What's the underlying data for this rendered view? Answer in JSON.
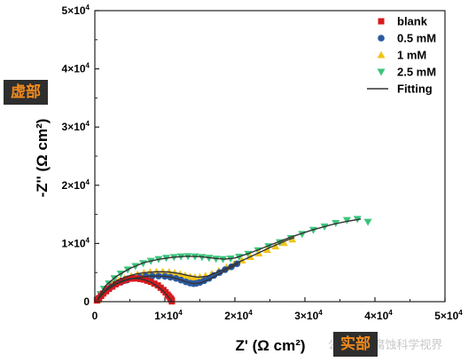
{
  "annotations": {
    "imaginary_tag": "虚部",
    "real_tag": "实部",
    "watermark": "公众号 · 腐蚀科学视界"
  },
  "chart_data": {
    "type": "scatter",
    "xlabel": "Z' (Ω cm²)",
    "ylabel": "-Z'' (Ω cm²)",
    "xlim": [
      0,
      50000
    ],
    "ylim": [
      0,
      50000
    ],
    "x_ticks": [
      0,
      10000,
      20000,
      30000,
      40000,
      50000
    ],
    "y_ticks": [
      0,
      10000,
      20000,
      30000,
      40000,
      50000
    ],
    "tick_labels": [
      "0",
      "1×10",
      "2×10",
      "3×10",
      "4×10",
      "5×10"
    ],
    "tick_exponent": "4",
    "grid": false,
    "legend_position": "top-right",
    "series": [
      {
        "name": "blank",
        "marker": "square",
        "color": "#d7191c",
        "x": [
          300,
          600,
          900,
          1200,
          1600,
          2000,
          2500,
          3000,
          3500,
          4000,
          4500,
          5000,
          5500,
          6000,
          6500,
          7000,
          7500,
          8000,
          8500,
          9000,
          9400,
          9800,
          10100,
          10400,
          10600,
          10800,
          10900,
          11000,
          11000
        ],
        "y": [
          200,
          600,
          1000,
          1400,
          1800,
          2200,
          2600,
          3000,
          3300,
          3600,
          3800,
          3950,
          4000,
          4000,
          3900,
          3800,
          3600,
          3400,
          3100,
          2800,
          2400,
          2000,
          1600,
          1200,
          900,
          600,
          400,
          200,
          50
        ]
      },
      {
        "name": "0.5 mM",
        "marker": "circle",
        "color": "#2c5aa0",
        "x": [
          400,
          800,
          1200,
          1700,
          2300,
          3000,
          3800,
          4600,
          5500,
          6400,
          7300,
          8200,
          9100,
          10000,
          10800,
          11600,
          12300,
          13000,
          13600,
          14100,
          14500,
          15000,
          15600,
          16300,
          17000,
          17800,
          18600,
          19500,
          20300
        ],
        "y": [
          300,
          900,
          1400,
          2000,
          2500,
          3000,
          3400,
          3700,
          4000,
          4200,
          4350,
          4400,
          4400,
          4350,
          4200,
          4000,
          3700,
          3400,
          3200,
          3100,
          3150,
          3300,
          3600,
          4000,
          4500,
          5000,
          5500,
          6000,
          6500
        ]
      },
      {
        "name": "1 mM",
        "marker": "triangle-up",
        "color": "#f0c419",
        "x": [
          400,
          800,
          1300,
          1900,
          2600,
          3400,
          4300,
          5200,
          6100,
          7000,
          7900,
          8800,
          9700,
          10600,
          11400,
          12200,
          12900,
          13600,
          14300,
          15000,
          15800,
          16700,
          17700,
          18800,
          19900,
          21000,
          22200,
          23400,
          24600,
          25800,
          27000,
          28200
        ],
        "y": [
          300,
          1000,
          1700,
          2400,
          3000,
          3600,
          4000,
          4400,
          4700,
          4950,
          5100,
          5150,
          5150,
          5100,
          4950,
          4750,
          4500,
          4300,
          4200,
          4250,
          4450,
          4800,
          5300,
          5900,
          6500,
          7100,
          7700,
          8300,
          8900,
          9500,
          10100,
          10700
        ]
      },
      {
        "name": "2.5 mM",
        "marker": "triangle-down",
        "color": "#3cc47c",
        "x": [
          400,
          800,
          1300,
          2000,
          2800,
          3700,
          4700,
          5800,
          6900,
          8000,
          9100,
          10200,
          11300,
          12300,
          13300,
          14300,
          15300,
          16300,
          17300,
          18300,
          19400,
          20600,
          21900,
          23300,
          24800,
          26400,
          28000,
          29600,
          31200,
          32800,
          34400,
          36000,
          37500,
          39000
        ],
        "y": [
          400,
          1300,
          2200,
          3100,
          4000,
          4800,
          5500,
          6100,
          6600,
          7000,
          7300,
          7500,
          7650,
          7750,
          7800,
          7750,
          7650,
          7500,
          7350,
          7300,
          7400,
          7700,
          8200,
          8800,
          9500,
          10200,
          10900,
          11600,
          12300,
          12900,
          13500,
          14000,
          14200,
          13700
        ]
      },
      {
        "name": "Fitting",
        "marker": "line",
        "color": "#333333",
        "fits": [
          {
            "x": [
              300,
              1000,
              2000,
              3000,
              4000,
              5000,
              6000,
              7000,
              8000,
              8800,
              9500,
              10100,
              10500,
              10800,
              11000
            ],
            "y": [
              200,
              1300,
              2300,
              3100,
              3650,
              3950,
              4000,
              3800,
              3350,
              2750,
              2100,
              1400,
              800,
              400,
              0
            ]
          },
          {
            "x": [
              400,
              1500,
              3000,
              4500,
              6000,
              7500,
              9000,
              10500,
              12000,
              13200,
              14200,
              15200,
              16500,
              18000,
              19500,
              20500
            ],
            "y": [
              300,
              1800,
              3000,
              3700,
              4100,
              4350,
              4400,
              4300,
              3850,
              3350,
              3100,
              3250,
              3900,
              4900,
              5900,
              6500
            ]
          },
          {
            "x": [
              400,
              1500,
              3000,
              4500,
              6000,
              7500,
              9000,
              10500,
              12000,
              13500,
              14700,
              16000,
              18000,
              20000,
              22500,
              25000,
              27500,
              28500
            ],
            "y": [
              300,
              2000,
              3500,
              4300,
              4800,
              5050,
              5150,
              5100,
              4850,
              4450,
              4200,
              4350,
              5300,
              6500,
              7900,
              9300,
              10600,
              11000
            ]
          },
          {
            "x": [
              400,
              1500,
              3000,
              5000,
              7000,
              9000,
              11000,
              13000,
              15000,
              17000,
              18500,
              20000,
              22000,
              25000,
              28000,
              31000,
              34000,
              36000,
              38000
            ],
            "y": [
              400,
              2700,
              4300,
              5700,
              6700,
              7250,
              7600,
              7800,
              7750,
              7450,
              7300,
              7500,
              8300,
              9700,
              11100,
              12300,
              13300,
              13800,
              14200
            ]
          }
        ]
      }
    ]
  }
}
